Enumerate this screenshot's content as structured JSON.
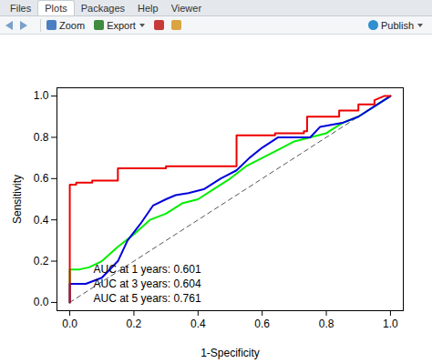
{
  "chart_data": {
    "type": "line",
    "xlabel": "1-Specificity",
    "ylabel": "Sensitivity",
    "xlim": [
      -0.04,
      1.04
    ],
    "ylim": [
      -0.04,
      1.04
    ],
    "xticks": [
      {
        "value": 0,
        "label": "0.0"
      },
      {
        "value": 0.2,
        "label": "0.2"
      },
      {
        "value": 0.4,
        "label": "0.4"
      },
      {
        "value": 0.6,
        "label": "0.6"
      },
      {
        "value": 0.8,
        "label": "0.8"
      },
      {
        "value": 1,
        "label": "1.0"
      }
    ],
    "yticks": [
      {
        "value": 0,
        "label": "0.0"
      },
      {
        "value": 0.2,
        "label": "0.2"
      },
      {
        "value": 0.4,
        "label": "0.4"
      },
      {
        "value": 0.6,
        "label": "0.6"
      },
      {
        "value": 0.8,
        "label": "0.8"
      },
      {
        "value": 1,
        "label": "1.0"
      }
    ],
    "grid": false,
    "legend": "bottomleft",
    "reference_line": {
      "x": [
        0,
        1
      ],
      "values": [
        0,
        1
      ],
      "color": "#555555",
      "line_style": "dashed"
    },
    "series": [
      {
        "name": "AUC at 1 years: 0.601",
        "color": "#00ee00",
        "line_style": "solid",
        "x": [
          0,
          0,
          0.03,
          0.06,
          0.1,
          0.15,
          0.2,
          0.25,
          0.3,
          0.35,
          0.4,
          0.45,
          0.5,
          0.55,
          0.6,
          0.65,
          0.7,
          0.75,
          0.8,
          0.85,
          0.9,
          0.95,
          1
        ],
        "values": [
          0,
          0.16,
          0.16,
          0.17,
          0.2,
          0.27,
          0.33,
          0.4,
          0.43,
          0.48,
          0.5,
          0.55,
          0.6,
          0.66,
          0.7,
          0.74,
          0.78,
          0.8,
          0.82,
          0.87,
          0.9,
          0.95,
          1
        ]
      },
      {
        "name": "AUC at 3 years: 0.604",
        "color": "#0000dd",
        "line_style": "solid",
        "x": [
          0,
          0,
          0.05,
          0.1,
          0.15,
          0.18,
          0.22,
          0.26,
          0.3,
          0.33,
          0.37,
          0.42,
          0.47,
          0.52,
          0.56,
          0.6,
          0.65,
          0.7,
          0.75,
          0.78,
          0.85,
          0.9,
          0.95,
          1
        ],
        "values": [
          0,
          0.09,
          0.09,
          0.12,
          0.2,
          0.3,
          0.38,
          0.47,
          0.5,
          0.52,
          0.53,
          0.55,
          0.6,
          0.64,
          0.7,
          0.75,
          0.8,
          0.8,
          0.8,
          0.85,
          0.87,
          0.9,
          0.95,
          1
        ]
      },
      {
        "name": "AUC at 5 years: 0.761",
        "color": "#ee0000",
        "line_style": "solid",
        "x": [
          0,
          0,
          0.02,
          0.02,
          0.07,
          0.07,
          0.15,
          0.15,
          0.3,
          0.3,
          0.52,
          0.52,
          0.64,
          0.64,
          0.73,
          0.73,
          0.74,
          0.74,
          0.84,
          0.84,
          0.9,
          0.9,
          0.95,
          0.95,
          0.98,
          1
        ],
        "values": [
          0,
          0.57,
          0.57,
          0.58,
          0.58,
          0.59,
          0.59,
          0.65,
          0.65,
          0.66,
          0.66,
          0.81,
          0.81,
          0.82,
          0.82,
          0.83,
          0.83,
          0.9,
          0.9,
          0.93,
          0.93,
          0.96,
          0.96,
          0.98,
          1,
          1
        ]
      }
    ]
  },
  "toolbar": {
    "tabs": [
      "Files",
      "Plots",
      "Packages",
      "Help",
      "Viewer"
    ],
    "selected_tab": "Plots",
    "buttons": [
      "Zoom",
      "Export"
    ],
    "right_button": "Publish"
  }
}
